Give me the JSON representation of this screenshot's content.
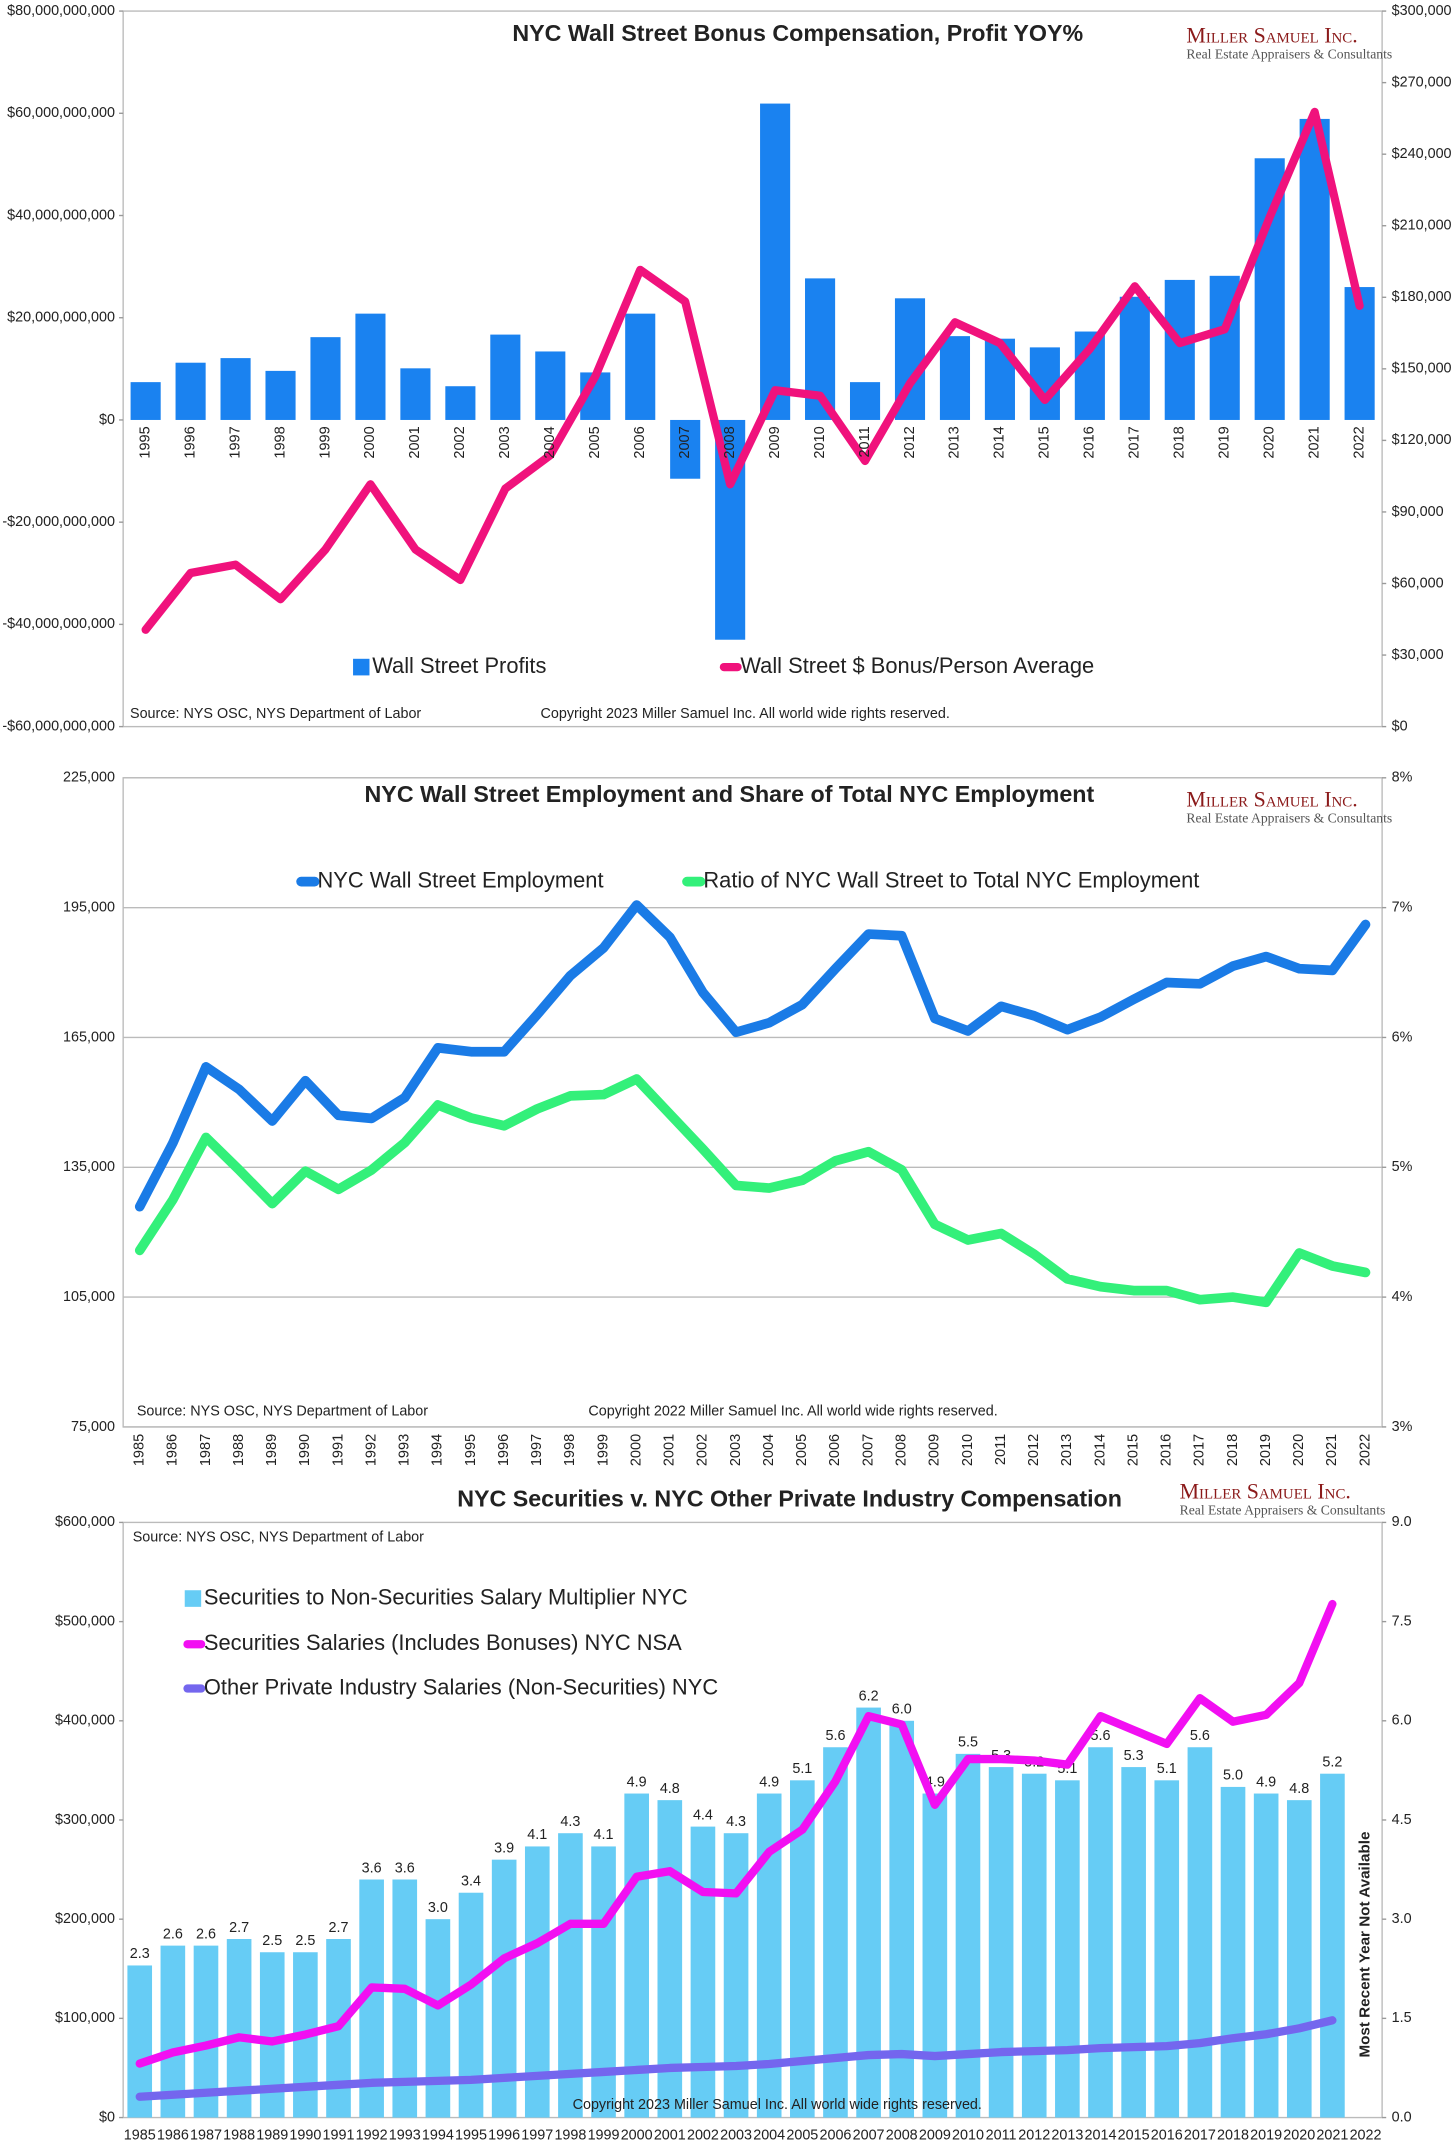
{
  "chart_data": [
    {
      "type": "combo",
      "title": "NYC Wall Street Bonus Compensation, Profit YOY%",
      "logo_name": "Miller Samuel Inc.",
      "logo_tagline": "Real Estate Appraisers & Consultants",
      "source": "Source: NYS OSC, NYS Department of Labor",
      "copyright": "Copyright 2023 Miller Samuel Inc.  All world wide rights reserved.",
      "categories": [
        "1995",
        "1996",
        "1997",
        "1998",
        "1999",
        "2000",
        "2001",
        "2002",
        "2003",
        "2004",
        "2005",
        "2006",
        "2007",
        "2008",
        "2009",
        "2010",
        "2011",
        "2012",
        "2013",
        "2014",
        "2015",
        "2016",
        "2017",
        "2018",
        "2019",
        "2020",
        "2021",
        "2022"
      ],
      "series": [
        {
          "name": "Wall Street Profits",
          "type": "bar",
          "axis": "y",
          "color": "#1a82f0",
          "values": [
            7400000000,
            11200000000,
            12100000000,
            9600000000,
            16200000000,
            20800000000,
            10100000000,
            6600000000,
            16700000000,
            13400000000,
            9300000000,
            20800000000,
            -11500000000,
            -43000000000,
            61900000000,
            27700000000,
            7400000000,
            23800000000,
            16400000000,
            15900000000,
            14200000000,
            17300000000,
            24100000000,
            27400000000,
            28200000000,
            51200000000,
            58900000000,
            26000000000
          ]
        },
        {
          "name": "Wall Street $ Bonus/Person Average",
          "type": "line",
          "axis": "y2",
          "color": "#f0127c",
          "values": [
            40600,
            64400,
            67900,
            53400,
            74300,
            101600,
            74300,
            61500,
            99800,
            113800,
            146800,
            191500,
            178200,
            101600,
            141000,
            138700,
            111400,
            143900,
            169500,
            160800,
            137000,
            158400,
            184600,
            160800,
            166600,
            213600,
            257700,
            176400
          ]
        }
      ],
      "ylim": [
        -60000000000,
        80000000000
      ],
      "yticks": [
        {
          "value": -60000000000,
          "label": "-$60,000,000,000"
        },
        {
          "value": -40000000000,
          "label": "-$40,000,000,000"
        },
        {
          "value": -20000000000,
          "label": "-$20,000,000,000"
        },
        {
          "value": 0,
          "label": "$0"
        },
        {
          "value": 20000000000,
          "label": "$20,000,000,000"
        },
        {
          "value": 40000000000,
          "label": "$40,000,000,000"
        },
        {
          "value": 60000000000,
          "label": "$60,000,000,000"
        },
        {
          "value": 80000000000,
          "label": "$80,000,000,000"
        }
      ],
      "y2lim": [
        0,
        300000
      ],
      "y2ticks": [
        {
          "value": 0,
          "label": "$0"
        },
        {
          "value": 30000,
          "label": "$30,000"
        },
        {
          "value": 60000,
          "label": "$60,000"
        },
        {
          "value": 90000,
          "label": "$90,000"
        },
        {
          "value": 120000,
          "label": "$120,000"
        },
        {
          "value": 150000,
          "label": "$150,000"
        },
        {
          "value": 180000,
          "label": "$180,000"
        },
        {
          "value": 210000,
          "label": "$210,000"
        },
        {
          "value": 240000,
          "label": "$240,000"
        },
        {
          "value": 270000,
          "label": "$270,000"
        },
        {
          "value": 300000,
          "label": "$300,000"
        }
      ],
      "grid": false
    },
    {
      "type": "line",
      "title": "NYC Wall Street Employment and Share of Total NYC Employment",
      "logo_name": "Miller Samuel Inc.",
      "logo_tagline": "Real Estate Appraisers & Consultants",
      "source": "Source: NYS OSC, NYS Department of Labor",
      "copyright": "Copyright 2022 Miller Samuel Inc.  All world wide rights reserved.",
      "categories": [
        "1985",
        "1986",
        "1987",
        "1988",
        "1989",
        "1990",
        "1991",
        "1992",
        "1993",
        "1994",
        "1995",
        "1996",
        "1997",
        "1998",
        "1999",
        "2000",
        "2001",
        "2002",
        "2003",
        "2004",
        "2005",
        "2006",
        "2007",
        "2008",
        "2009",
        "2010",
        "2011",
        "2012",
        "2013",
        "2014",
        "2015",
        "2016",
        "2017",
        "2018",
        "2019",
        "2020",
        "2021",
        "2022"
      ],
      "series": [
        {
          "name": "NYC Wall Street Employment",
          "type": "line",
          "axis": "y",
          "color": "#1a7be6",
          "values": [
            125900,
            140600,
            158200,
            153000,
            145700,
            155000,
            147000,
            146300,
            151100,
            162600,
            161700,
            161700,
            170300,
            179300,
            185700,
            195600,
            188200,
            175400,
            166200,
            168400,
            172600,
            180900,
            188900,
            188500,
            169400,
            166500,
            172200,
            170000,
            166800,
            169700,
            173800,
            177700,
            177400,
            181500,
            183700,
            180900,
            180500,
            191100
          ]
        },
        {
          "name": "Ratio of NYC Wall Street to Total NYC Employment",
          "type": "line",
          "axis": "y2",
          "color": "#33f07a",
          "values": [
            4.36,
            4.75,
            5.23,
            4.98,
            4.72,
            4.97,
            4.83,
            4.98,
            5.19,
            5.48,
            5.38,
            5.32,
            5.45,
            5.55,
            5.56,
            5.68,
            5.41,
            5.14,
            4.86,
            4.84,
            4.9,
            5.05,
            5.12,
            4.98,
            4.56,
            4.44,
            4.49,
            4.33,
            4.14,
            4.08,
            4.05,
            4.05,
            3.98,
            4.0,
            3.96,
            4.34,
            4.24,
            4.19
          ]
        }
      ],
      "ylim": [
        75000,
        225000
      ],
      "yticks": [
        {
          "value": 75000,
          "label": "75,000"
        },
        {
          "value": 105000,
          "label": "105,000"
        },
        {
          "value": 135000,
          "label": "135,000"
        },
        {
          "value": 165000,
          "label": "165,000"
        },
        {
          "value": 195000,
          "label": "195,000"
        },
        {
          "value": 225000,
          "label": "225,000"
        }
      ],
      "y2lim": [
        3,
        8
      ],
      "y2ticks": [
        {
          "value": 3,
          "label": "3%"
        },
        {
          "value": 4,
          "label": "4%"
        },
        {
          "value": 5,
          "label": "5%"
        },
        {
          "value": 6,
          "label": "6%"
        },
        {
          "value": 7,
          "label": "7%"
        },
        {
          "value": 8,
          "label": "8%"
        }
      ],
      "grid": true
    },
    {
      "type": "combo",
      "title": "NYC Securities v. NYC Other Private Industry Compensation",
      "logo_name": "Miller Samuel Inc.",
      "logo_tagline": "Real Estate Appraisers & Consultants",
      "source": "Source: NYS OSC, NYS Department of Labor",
      "copyright": "Copyright 2023 Miller Samuel Inc.  All world wide rights reserved.",
      "annotation": "Most  Recent Year Not Available",
      "categories": [
        "1985",
        "1986",
        "1987",
        "1988",
        "1989",
        "1990",
        "1991",
        "1992",
        "1993",
        "1994",
        "1995",
        "1996",
        "1997",
        "1998",
        "1999",
        "2000",
        "2001",
        "2002",
        "2003",
        "2004",
        "2005",
        "2006",
        "2007",
        "2008",
        "2009",
        "2010",
        "2011",
        "2012",
        "2013",
        "2014",
        "2015",
        "2016",
        "2017",
        "2018",
        "2019",
        "2020",
        "2021",
        "2022"
      ],
      "series": [
        {
          "name": "Securities to Non-Securities Salary Multiplier NYC",
          "type": "bar",
          "axis": "y2",
          "color": "#66ccf5",
          "values": [
            2.3,
            2.6,
            2.6,
            2.7,
            2.5,
            2.5,
            2.7,
            3.6,
            3.6,
            3.0,
            3.4,
            3.9,
            4.1,
            4.3,
            4.1,
            4.9,
            4.8,
            4.4,
            4.3,
            4.9,
            5.1,
            5.6,
            6.2,
            6.0,
            4.9,
            5.5,
            5.3,
            5.2,
            5.1,
            5.6,
            5.3,
            5.1,
            5.6,
            5.0,
            4.9,
            4.8,
            5.2,
            null
          ],
          "value_labels": [
            "2.3",
            "2.6",
            "2.6",
            "2.7",
            "2.5",
            "2.5",
            "2.7",
            "3.6",
            "3.6",
            "3.0",
            "3.4",
            "3.9",
            "4.1",
            "4.3",
            "4.1",
            "4.9",
            "4.8",
            "4.4",
            "4.3",
            "4.9",
            "5.1",
            "5.6",
            "6.2",
            "6.0",
            "4.9",
            "5.5",
            "5.3",
            "5.2",
            "5.1",
            "5.6",
            "5.3",
            "5.1",
            "5.6",
            "5.0",
            "4.9",
            "4.8",
            "5.2",
            null
          ]
        },
        {
          "name": "Securities Salaries (Includes Bonuses) NYC NSA",
          "type": "line",
          "axis": "y",
          "color": "#f20ff2",
          "values": [
            54400,
            65600,
            72600,
            80900,
            76700,
            83700,
            92100,
            131200,
            129800,
            113000,
            134000,
            160500,
            175800,
            195300,
            195300,
            242800,
            248400,
            227400,
            226000,
            267900,
            290200,
            339100,
            404700,
            396300,
            315300,
            361400,
            361400,
            360000,
            355800,
            404700,
            390700,
            376700,
            422800,
            399100,
            406000,
            438100,
            517700,
            null
          ]
        },
        {
          "name": "Other Private Industry Salaries (Non-Securities) NYC",
          "type": "line",
          "axis": "y",
          "color": "#7466ee",
          "values": [
            21000,
            23000,
            25000,
            27000,
            29000,
            31000,
            33000,
            35000,
            36000,
            37000,
            38000,
            40000,
            42000,
            44000,
            46000,
            48000,
            50000,
            51000,
            52000,
            54000,
            57000,
            60000,
            63000,
            64000,
            62000,
            64000,
            66000,
            67000,
            68000,
            70000,
            71000,
            72000,
            75000,
            80000,
            84000,
            90000,
            98000,
            null
          ]
        }
      ],
      "ylim": [
        0,
        600000
      ],
      "yticks": [
        {
          "value": 0,
          "label": "$0"
        },
        {
          "value": 100000,
          "label": "$100,000"
        },
        {
          "value": 200000,
          "label": "$200,000"
        },
        {
          "value": 300000,
          "label": "$300,000"
        },
        {
          "value": 400000,
          "label": "$400,000"
        },
        {
          "value": 500000,
          "label": "$500,000"
        },
        {
          "value": 600000,
          "label": "$600,000"
        }
      ],
      "y2lim": [
        0,
        9
      ],
      "y2ticks": [
        {
          "value": 0,
          "label": "0.0"
        },
        1.5,
        {
          "value": 3,
          "label": "3.0"
        },
        4.5,
        {
          "value": 6,
          "label": "6.0"
        },
        7.5,
        {
          "value": 9,
          "label": "9.0"
        }
      ],
      "grid": false
    }
  ]
}
